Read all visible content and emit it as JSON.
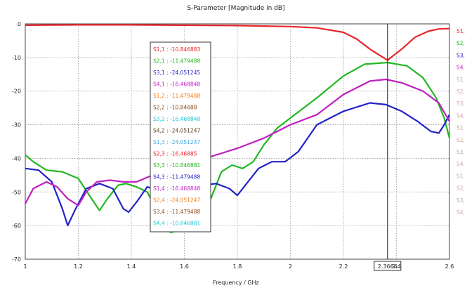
{
  "chart_data": {
    "type": "line",
    "title": "S-Parameter [Magnitude in dB]",
    "xlabel": "Frequency / GHz",
    "ylabel": "",
    "xlim": [
      1,
      2.6
    ],
    "ylim": [
      -70,
      0
    ],
    "x_ticks": [
      "1",
      "1.2",
      "1.4",
      "1.6",
      "1.8",
      "2",
      "2.2",
      "2.4",
      "2.6"
    ],
    "y_ticks": [
      "0",
      "-10",
      "-20",
      "-30",
      "-40",
      "-50",
      "-60",
      "-70"
    ],
    "grid": true,
    "marker": {
      "x": 2.3664,
      "label": "2.3664"
    },
    "series": [
      {
        "name": "S1,1",
        "color": "#e8262c",
        "points": [
          [
            1,
            -0.4
          ],
          [
            1.2,
            -0.3
          ],
          [
            1.4,
            -0.3
          ],
          [
            1.6,
            -0.4
          ],
          [
            1.8,
            -0.5
          ],
          [
            2.0,
            -0.8
          ],
          [
            2.1,
            -1.2
          ],
          [
            2.2,
            -2.5
          ],
          [
            2.25,
            -4.5
          ],
          [
            2.3,
            -7.5
          ],
          [
            2.3664,
            -10.8
          ],
          [
            2.42,
            -7.5
          ],
          [
            2.47,
            -4.0
          ],
          [
            2.52,
            -2.2
          ],
          [
            2.56,
            -1.5
          ],
          [
            2.6,
            -1.4
          ]
        ]
      },
      {
        "name": "S2,1",
        "color": "#22b822",
        "points": [
          [
            1,
            -39
          ],
          [
            1.03,
            -41
          ],
          [
            1.08,
            -43.5
          ],
          [
            1.14,
            -44
          ],
          [
            1.2,
            -46
          ],
          [
            1.25,
            -52
          ],
          [
            1.28,
            -55.5
          ],
          [
            1.31,
            -52
          ],
          [
            1.35,
            -48
          ],
          [
            1.38,
            -47.5
          ],
          [
            1.42,
            -48.5
          ],
          [
            1.46,
            -50
          ],
          [
            1.48,
            -53
          ],
          [
            1.5,
            -57
          ],
          [
            1.52,
            -61
          ],
          [
            1.55,
            -62
          ],
          [
            1.6,
            -61
          ],
          [
            1.65,
            -58
          ],
          [
            1.7,
            -52
          ],
          [
            1.74,
            -44
          ],
          [
            1.78,
            -42
          ],
          [
            1.82,
            -43
          ],
          [
            1.86,
            -41
          ],
          [
            1.9,
            -36
          ],
          [
            1.95,
            -31
          ],
          [
            2.0,
            -28
          ],
          [
            2.1,
            -22
          ],
          [
            2.2,
            -15.5
          ],
          [
            2.28,
            -12
          ],
          [
            2.3664,
            -11.5
          ],
          [
            2.44,
            -12.5
          ],
          [
            2.5,
            -16
          ],
          [
            2.55,
            -22
          ],
          [
            2.58,
            -28
          ],
          [
            2.6,
            -34
          ]
        ]
      },
      {
        "name": "S3,1",
        "color": "#2323c8",
        "points": [
          [
            1,
            -43
          ],
          [
            1.05,
            -43.5
          ],
          [
            1.1,
            -47
          ],
          [
            1.14,
            -55
          ],
          [
            1.16,
            -60
          ],
          [
            1.19,
            -55
          ],
          [
            1.23,
            -49
          ],
          [
            1.28,
            -47.5
          ],
          [
            1.33,
            -49
          ],
          [
            1.37,
            -55
          ],
          [
            1.39,
            -56
          ],
          [
            1.42,
            -53
          ],
          [
            1.46,
            -48.5
          ],
          [
            1.5,
            -49.5
          ],
          [
            1.55,
            -51
          ],
          [
            1.6,
            -50
          ],
          [
            1.67,
            -48
          ],
          [
            1.72,
            -47.5
          ],
          [
            1.77,
            -49
          ],
          [
            1.8,
            -51
          ],
          [
            1.83,
            -48
          ],
          [
            1.88,
            -43
          ],
          [
            1.93,
            -41
          ],
          [
            1.98,
            -41
          ],
          [
            2.03,
            -38
          ],
          [
            2.1,
            -30
          ],
          [
            2.2,
            -26
          ],
          [
            2.3,
            -23.5
          ],
          [
            2.36,
            -24
          ],
          [
            2.42,
            -26
          ],
          [
            2.48,
            -29
          ],
          [
            2.53,
            -32
          ],
          [
            2.56,
            -32.5
          ],
          [
            2.58,
            -30
          ],
          [
            2.6,
            -27
          ]
        ]
      },
      {
        "name": "S4,1",
        "color": "#c020c0",
        "points": [
          [
            1,
            -53.5
          ],
          [
            1.03,
            -49
          ],
          [
            1.08,
            -47
          ],
          [
            1.12,
            -48.5
          ],
          [
            1.16,
            -52
          ],
          [
            1.2,
            -54
          ],
          [
            1.23,
            -50
          ],
          [
            1.27,
            -47
          ],
          [
            1.32,
            -46.5
          ],
          [
            1.37,
            -47
          ],
          [
            1.42,
            -47
          ],
          [
            1.48,
            -45
          ],
          [
            1.55,
            -43.5
          ],
          [
            1.62,
            -41
          ],
          [
            1.7,
            -39.5
          ],
          [
            1.8,
            -37
          ],
          [
            1.9,
            -34
          ],
          [
            2.0,
            -30
          ],
          [
            2.1,
            -27
          ],
          [
            2.2,
            -21
          ],
          [
            2.3,
            -17
          ],
          [
            2.36,
            -16.5
          ],
          [
            2.42,
            -17.5
          ],
          [
            2.5,
            -20
          ],
          [
            2.56,
            -23.5
          ],
          [
            2.6,
            -29
          ]
        ]
      }
    ]
  },
  "legend_box": [
    {
      "text": "S1,1 : -10.846883",
      "color": "#e8262c"
    },
    {
      "text": "S2,1 : -11.479488",
      "color": "#22b822"
    },
    {
      "text": "S3,1 : -24.051245",
      "color": "#2323c8"
    },
    {
      "text": "S4,1 : -16.468848",
      "color": "#c020c0"
    },
    {
      "text": "S1,2 : -11.479488",
      "color": "#f08020"
    },
    {
      "text": "S2,2 : -10.84688",
      "color": "#8b4513"
    },
    {
      "text": "S3,2 : -16.468848",
      "color": "#1fc8d8"
    },
    {
      "text": "S4,2 : -24.051247",
      "color": "#5a3a20"
    },
    {
      "text": "S1,3 : -24.051247",
      "color": "#3aa8e8"
    },
    {
      "text": "S2,3 : -16.46885",
      "color": "#e8262c"
    },
    {
      "text": "S3,3 : -10.846881",
      "color": "#22b822"
    },
    {
      "text": "S4,3 : -11.479488",
      "color": "#2323c8"
    },
    {
      "text": "S1,4 : -16.468848",
      "color": "#c020c0"
    },
    {
      "text": "S2,4 : -24.051247",
      "color": "#f08020"
    },
    {
      "text": "S3,4 : -11.479488",
      "color": "#8b4513"
    },
    {
      "text": "S4,4 : -10.846881",
      "color": "#1fc8d8"
    }
  ],
  "side_legend": [
    {
      "text": "S1,",
      "color": "#e8262c"
    },
    {
      "text": "S2,",
      "color": "#22b822"
    },
    {
      "text": "S3,",
      "color": "#2323c8"
    },
    {
      "text": "S4,",
      "color": "#c020c0"
    },
    {
      "text": "S1,",
      "color": "#c8a8a0"
    },
    {
      "text": "S2,",
      "color": "#c8a8a0"
    },
    {
      "text": "S3,",
      "color": "#c8a8a0"
    },
    {
      "text": "S4,",
      "color": "#c8a8a0"
    },
    {
      "text": "S1,",
      "color": "#c8a8a0"
    },
    {
      "text": "S2,",
      "color": "#c8a8a0"
    },
    {
      "text": "S3,",
      "color": "#c8a8a0"
    },
    {
      "text": "S4,",
      "color": "#c8a8a0"
    },
    {
      "text": "S1,",
      "color": "#c8a8a0"
    },
    {
      "text": "S2,",
      "color": "#c8a8a0"
    },
    {
      "text": "S3,",
      "color": "#c8a8a0"
    },
    {
      "text": "S4,",
      "color": "#c8a8a0"
    }
  ]
}
